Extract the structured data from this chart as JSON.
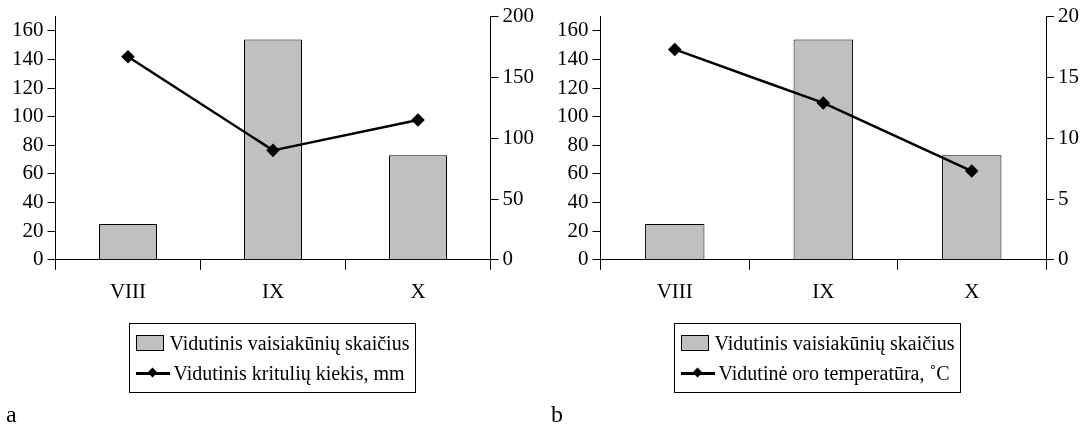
{
  "chart_data": [
    {
      "type": "bar",
      "categories": [
        "VIII",
        "IX",
        "X"
      ],
      "series": [
        {
          "name": "Vidutinis vaisiakūnių skaičius",
          "color": "#c0c0c0",
          "values": [
            25,
            154,
            73
          ]
        },
        {
          "name": "Vidutinis kritulių kiekis, mm",
          "type": "line",
          "axis": "y2",
          "color": "#000000",
          "values": [
            167,
            90,
            115
          ]
        }
      ],
      "ylim": [
        0,
        170
      ],
      "yticks": [
        0,
        20,
        40,
        60,
        80,
        100,
        120,
        140,
        160
      ],
      "y2lim": [
        0,
        200
      ],
      "y2ticks": [
        0,
        50,
        100,
        150,
        200
      ],
      "marker": "diamond",
      "legend": "bottom",
      "grid": false,
      "annotations": [
        "a"
      ]
    },
    {
      "type": "bar",
      "categories": [
        "VIII",
        "IX",
        "X"
      ],
      "series": [
        {
          "name": "Vidutinis vaisiakūnių skaičius",
          "color": "#c0c0c0",
          "values": [
            25,
            154,
            73
          ]
        },
        {
          "name": "Vidutinė oro temperatūra, ˚C",
          "type": "line",
          "axis": "y2",
          "color": "#000000",
          "values": [
            17.3,
            12.9,
            7.3
          ]
        }
      ],
      "ylim": [
        0,
        170
      ],
      "yticks": [
        0,
        20,
        40,
        60,
        80,
        100,
        120,
        140,
        160
      ],
      "y2lim": [
        0,
        20
      ],
      "y2ticks": [
        0,
        5,
        10,
        15,
        20
      ],
      "marker": "diamond",
      "legend": "bottom",
      "grid": false,
      "annotations": [
        "b"
      ]
    }
  ]
}
